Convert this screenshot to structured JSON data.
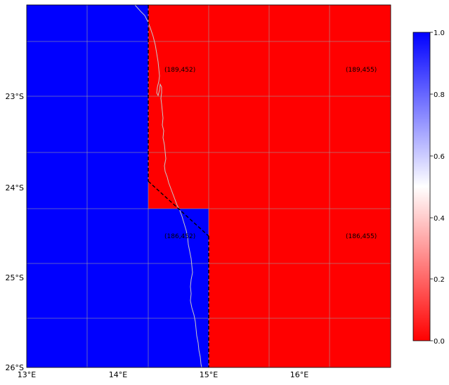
{
  "map": {
    "x_ticks": [
      "13°E",
      "14°E",
      "15°E",
      "16°E"
    ],
    "y_ticks": [
      "23°S",
      "24°S",
      "25°S",
      "26°S"
    ],
    "extent": {
      "lon": [
        13,
        17
      ],
      "lat": [
        -26,
        -22
      ]
    },
    "grid": true,
    "cells": [
      {
        "label": "(189,452)",
        "value": 0,
        "color": "#ff0000"
      },
      {
        "label": "(189,455)",
        "value": 0,
        "color": "#ff0000"
      },
      {
        "label": "(186,452)",
        "value": 1,
        "color": "#0000ff"
      },
      {
        "label": "(186,455)",
        "value": 0,
        "color": "#ff0000"
      }
    ],
    "left_color": "#0000ff",
    "coastline_color": "#c8c8c8"
  },
  "colorbar": {
    "ticks": [
      "0.0",
      "0.2",
      "0.4",
      "0.6",
      "0.8",
      "1.0"
    ],
    "range": [
      0,
      1
    ],
    "colors": {
      "low": "#ff0000",
      "mid": "#ffffff",
      "high": "#0000ff"
    }
  }
}
